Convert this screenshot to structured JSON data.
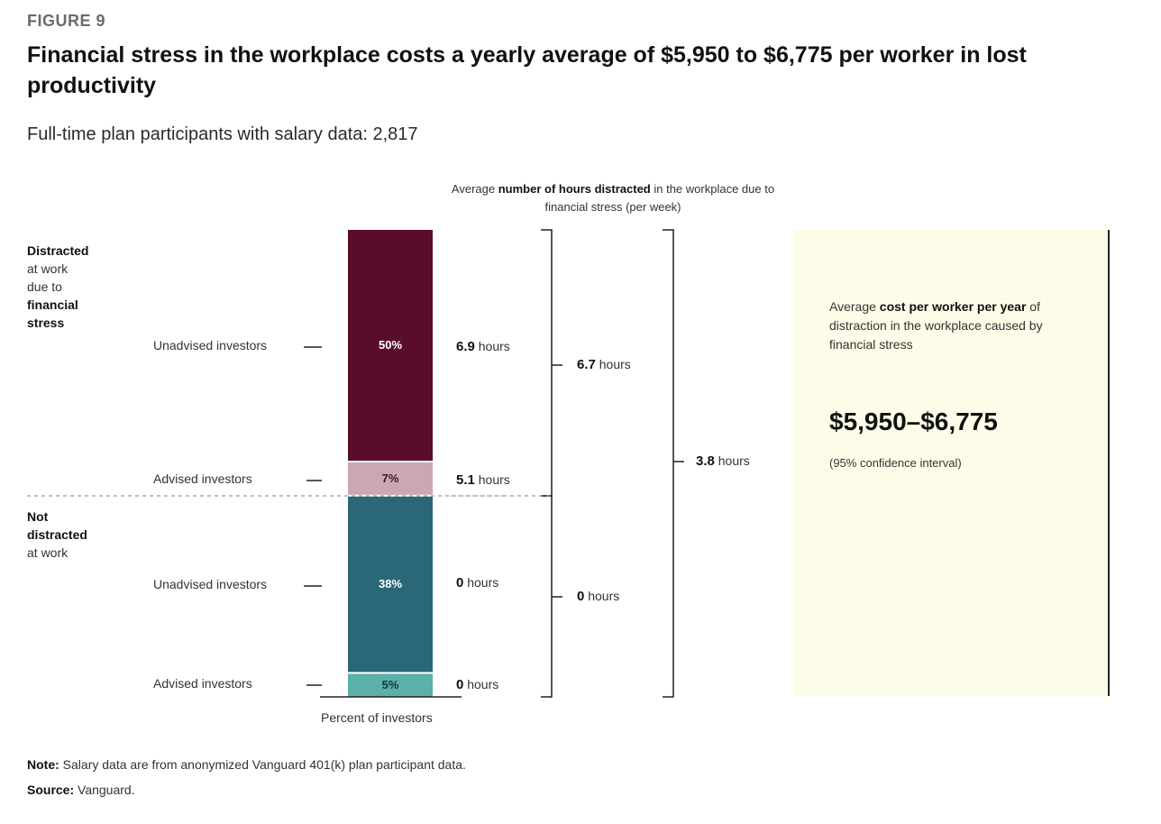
{
  "figure_label": "FIGURE 9",
  "title": "Financial stress in the workplace costs a yearly average of $5,950 to $6,775 per worker in lost productivity",
  "subtitle": "Full-time plan participants with salary data: 2,817",
  "header": {
    "prefix": "Average ",
    "bold": "number of hours distracted",
    "suffix": " in the workplace due to financial stress (per week)"
  },
  "groups": {
    "distracted": {
      "lines": [
        "Distracted",
        "at work",
        "due to",
        "financial",
        "stress"
      ]
    },
    "not_distracted": {
      "lines": [
        "Not",
        "distracted",
        "at work"
      ]
    }
  },
  "chart_data": {
    "type": "bar",
    "stacked": true,
    "xlabel": "Percent of investors",
    "categories": [
      "Unadvised investors",
      "Advised investors",
      "Unadvised investors",
      "Advised investors"
    ],
    "groups": [
      "Distracted at work due to financial stress",
      "Distracted at work due to financial stress",
      "Not distracted at work",
      "Not distracted at work"
    ],
    "values": [
      50,
      7,
      38,
      5
    ],
    "value_labels": [
      "50%",
      "7%",
      "38%",
      "5%"
    ],
    "hours_per_week": [
      6.9,
      5.1,
      0,
      0
    ],
    "colors": [
      "#5a0d2b",
      "#c9a7b3",
      "#2a6877",
      "#5bb0a8"
    ],
    "label_colors": [
      "#ffffff",
      "#3a1a24",
      "#ffffff",
      "#12383c"
    ]
  },
  "hours_labels": [
    {
      "value": "6.9",
      "unit": " hours"
    },
    {
      "value": "5.1",
      "unit": " hours"
    },
    {
      "value": "0",
      "unit": " hours"
    },
    {
      "value": "0",
      "unit": " hours"
    }
  ],
  "group_hours": {
    "distracted": {
      "value": "6.7",
      "unit": " hours"
    },
    "not_distracted": {
      "value": "0",
      "unit": " hours"
    },
    "overall": {
      "value": "3.8",
      "unit": " hours"
    }
  },
  "cost": {
    "desc_prefix": "Average ",
    "desc_bold": "cost per worker per year",
    "desc_suffix": " of distraction in the workplace caused by financial stress",
    "value": "$5,950–$6,775",
    "ci": "(95% confidence interval)"
  },
  "note": {
    "label": "Note:",
    "text": " Salary data are from anonymized Vanguard 401(k) plan participant data."
  },
  "source": {
    "label": "Source:",
    "text": " Vanguard."
  }
}
